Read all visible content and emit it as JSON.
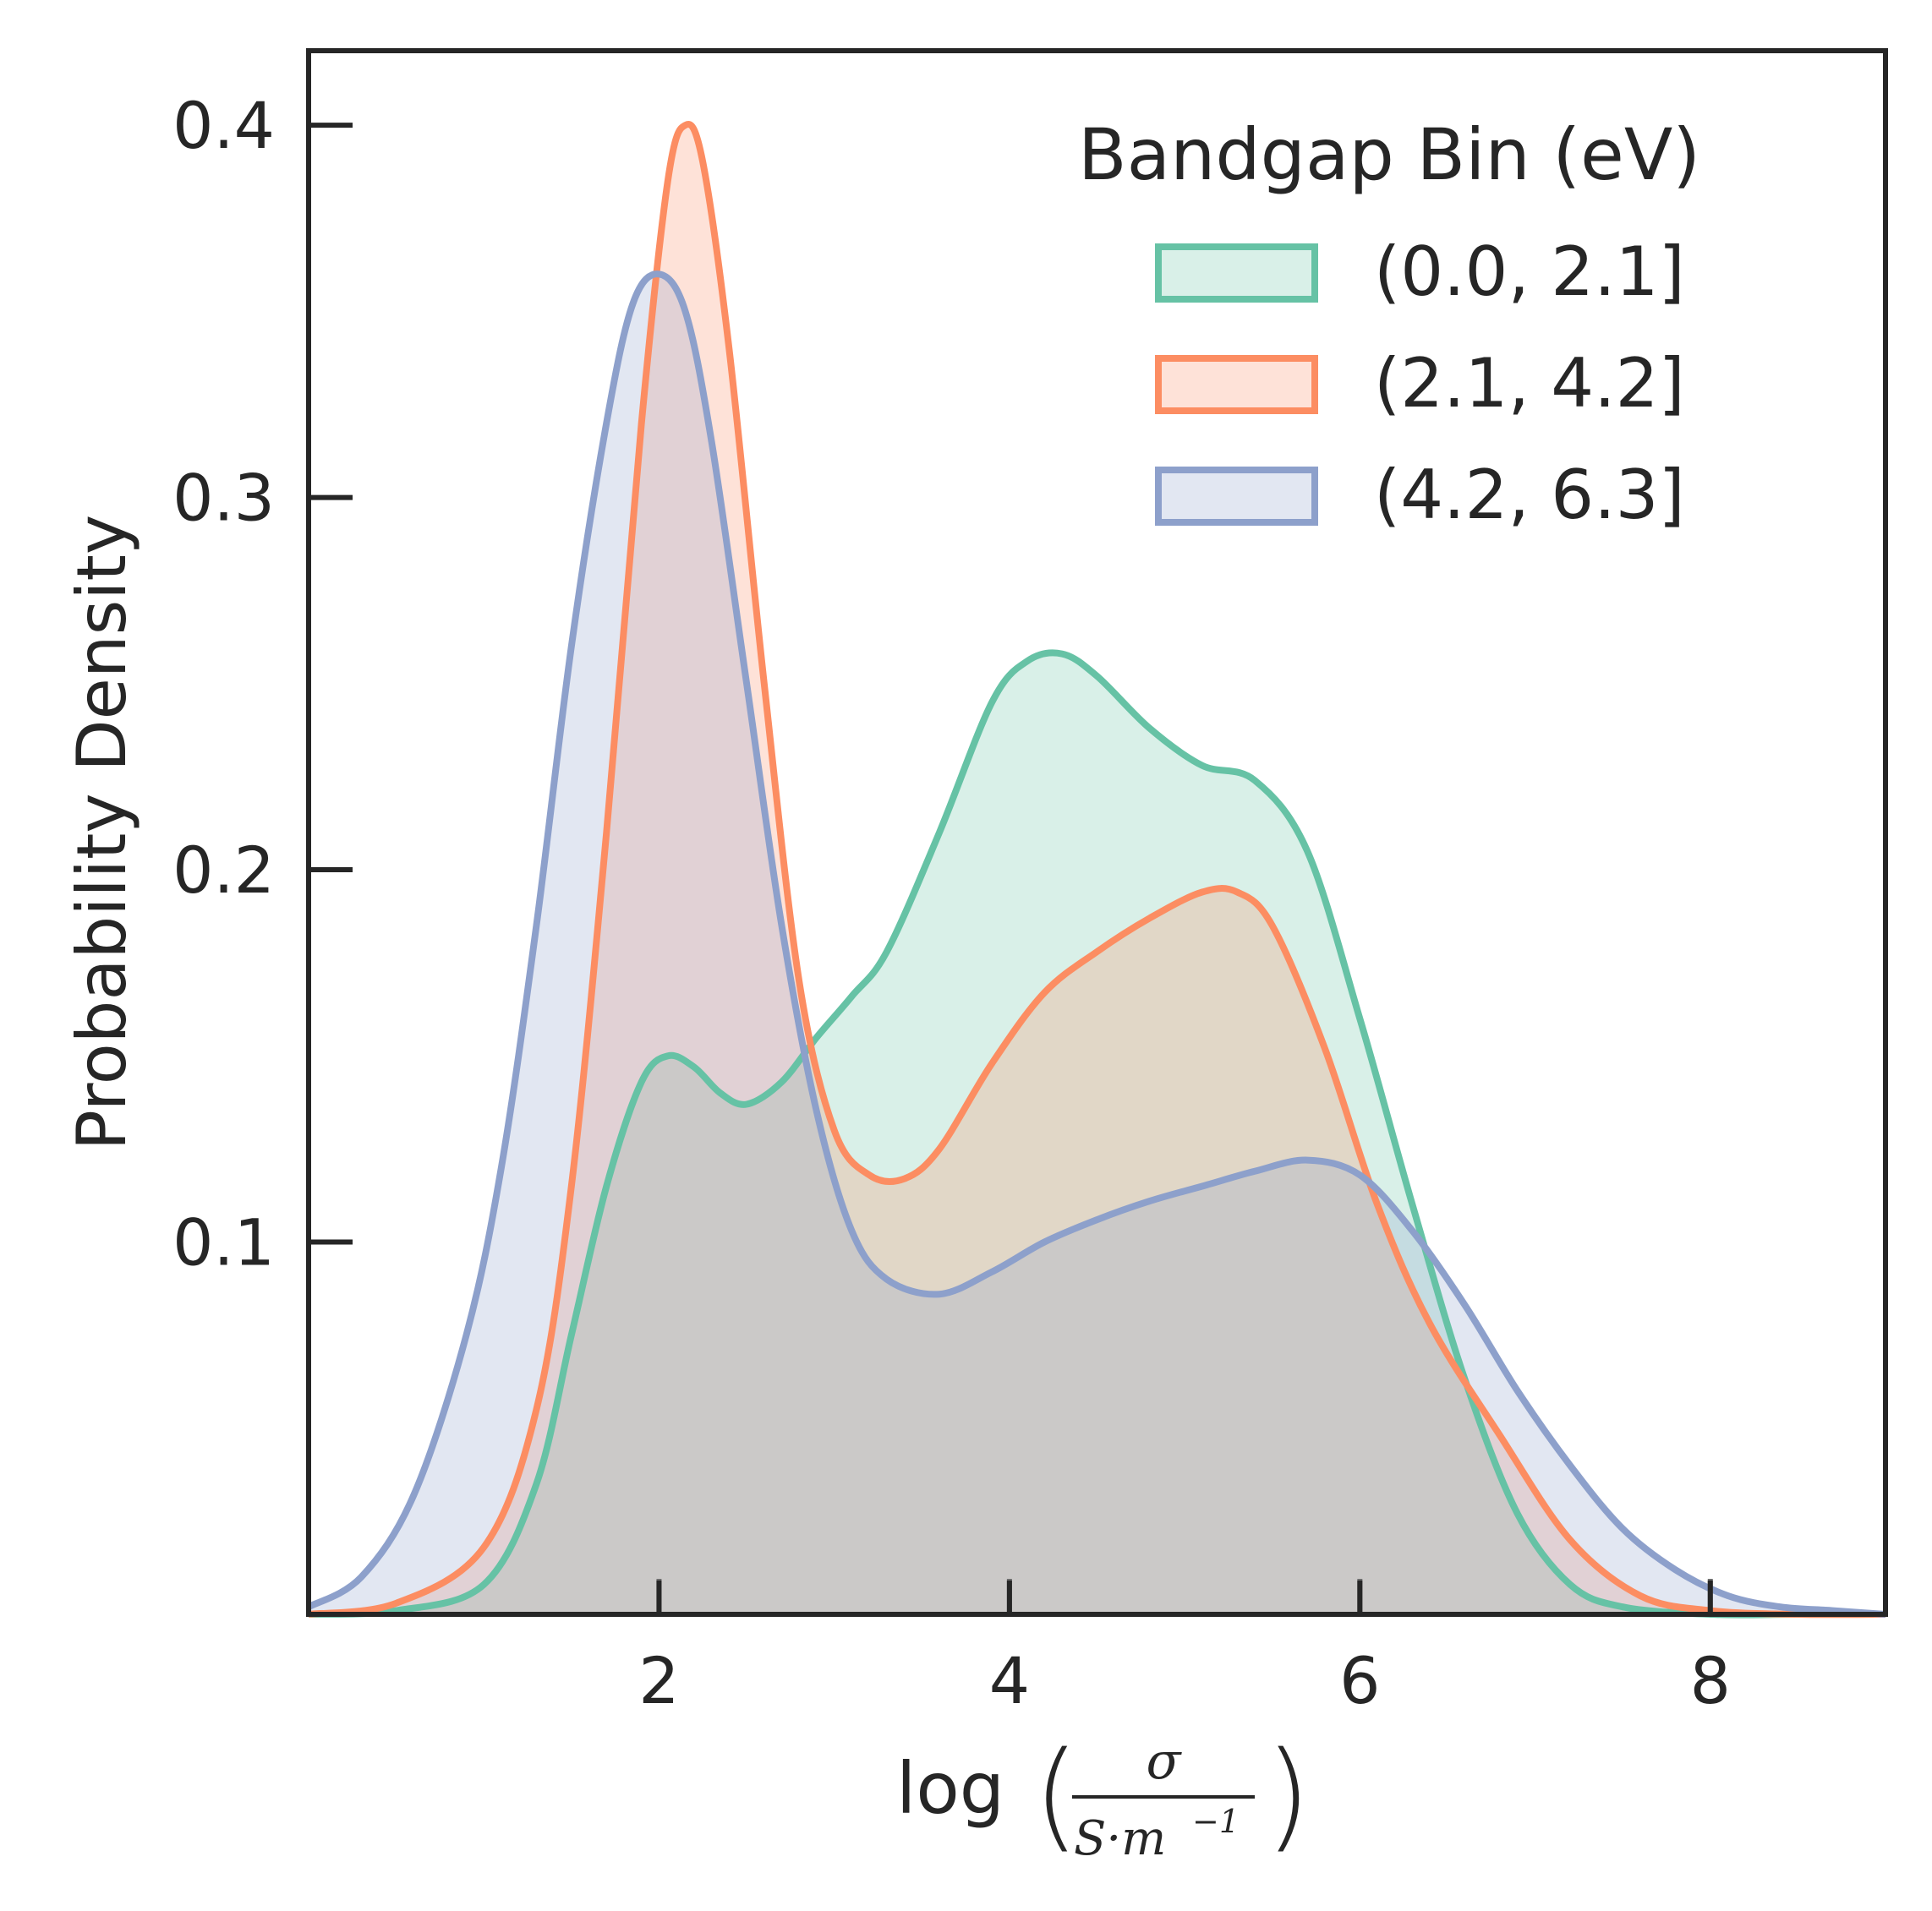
{
  "chart_data": {
    "type": "area",
    "title": "",
    "xlabel_prefix": "log",
    "xlabel_numerator": "σ",
    "xlabel_denominator": "S·m",
    "xlabel_exponent": "−1",
    "ylabel": "Probability Density",
    "xlim": [
      0.0,
      9.0
    ],
    "ylim": [
      0.0,
      0.42
    ],
    "xticks": [
      2,
      4,
      6,
      8
    ],
    "yticks": [
      0.1,
      0.2,
      0.3,
      0.4
    ],
    "xtick_labels": [
      "2",
      "4",
      "6",
      "8"
    ],
    "ytick_labels": [
      "0.1",
      "0.2",
      "0.3",
      "0.4"
    ],
    "grid": false,
    "legend": {
      "title": "Bandgap Bin (eV)",
      "location": "top-right"
    },
    "rug_x": [
      2,
      4,
      6,
      8
    ],
    "series": [
      {
        "name": "(0.0, 2.1]",
        "color": "#66c2a5",
        "x": [
          0.0,
          0.5,
          1.0,
          1.3,
          1.5,
          1.7,
          1.9,
          2.05,
          2.2,
          2.35,
          2.5,
          2.7,
          2.9,
          3.1,
          3.3,
          3.6,
          3.9,
          4.1,
          4.3,
          4.5,
          4.8,
          5.1,
          5.4,
          5.7,
          6.0,
          6.3,
          6.6,
          6.9,
          7.2,
          7.5,
          8.0,
          8.5,
          9.0
        ],
        "y": [
          0.0,
          0.001,
          0.008,
          0.035,
          0.075,
          0.115,
          0.143,
          0.15,
          0.147,
          0.14,
          0.137,
          0.143,
          0.155,
          0.166,
          0.178,
          0.21,
          0.245,
          0.256,
          0.258,
          0.252,
          0.238,
          0.228,
          0.224,
          0.205,
          0.16,
          0.11,
          0.063,
          0.027,
          0.008,
          0.002,
          0.0,
          0.0,
          0.0
        ]
      },
      {
        "name": "(2.1, 4.2]",
        "color": "#fc8d62",
        "x": [
          0.0,
          0.5,
          1.0,
          1.3,
          1.5,
          1.7,
          1.9,
          2.05,
          2.15,
          2.25,
          2.4,
          2.6,
          2.8,
          3.0,
          3.2,
          3.4,
          3.6,
          3.9,
          4.2,
          4.5,
          4.8,
          5.1,
          5.3,
          5.5,
          5.8,
          6.1,
          6.4,
          6.8,
          7.2,
          7.6,
          8.0,
          8.5,
          9.0
        ],
        "y": [
          0.0,
          0.003,
          0.018,
          0.055,
          0.115,
          0.21,
          0.32,
          0.385,
          0.4,
          0.39,
          0.34,
          0.25,
          0.17,
          0.13,
          0.118,
          0.117,
          0.125,
          0.148,
          0.167,
          0.178,
          0.187,
          0.194,
          0.194,
          0.185,
          0.152,
          0.11,
          0.078,
          0.048,
          0.02,
          0.005,
          0.001,
          0.0,
          0.0
        ]
      },
      {
        "name": "(4.2, 6.3]",
        "color": "#8da0cb",
        "x": [
          0.0,
          0.3,
          0.6,
          0.9,
          1.1,
          1.3,
          1.5,
          1.7,
          1.85,
          2.0,
          2.15,
          2.3,
          2.5,
          2.7,
          2.9,
          3.1,
          3.3,
          3.6,
          3.9,
          4.2,
          4.5,
          4.8,
          5.1,
          5.4,
          5.7,
          6.0,
          6.3,
          6.6,
          6.9,
          7.2,
          7.5,
          7.8,
          8.1,
          8.4,
          8.7,
          9.0
        ],
        "y": [
          0.002,
          0.01,
          0.032,
          0.075,
          0.12,
          0.185,
          0.26,
          0.32,
          0.352,
          0.36,
          0.35,
          0.315,
          0.25,
          0.185,
          0.135,
          0.103,
          0.09,
          0.086,
          0.092,
          0.1,
          0.106,
          0.111,
          0.115,
          0.119,
          0.122,
          0.118,
          0.103,
          0.083,
          0.06,
          0.04,
          0.023,
          0.012,
          0.005,
          0.002,
          0.001,
          0.0
        ]
      }
    ]
  }
}
